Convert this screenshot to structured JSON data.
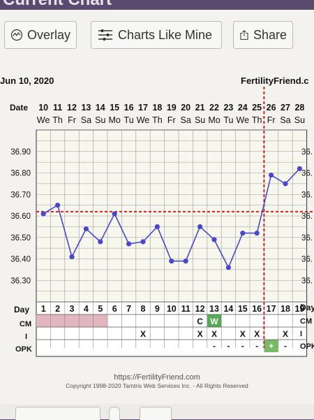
{
  "header": {
    "title": "Current Chart"
  },
  "toolbar": {
    "overlay_label": "Overlay",
    "charts_like_mine_label": "Charts Like Mine",
    "share_label": "Share"
  },
  "chart_info": {
    "start_date": "Jun 10, 2020",
    "site": "FertilityFriend.c"
  },
  "footer": {
    "url": "https://FertilityFriend.com",
    "copyright": "Copyright 1998-2020 Tamtris Web Services Inc. - All Rights Reserved"
  },
  "colors": {
    "line": "#4848c8",
    "coverline": "#cc2222",
    "cm_fill": "#e2b6be",
    "cm_w_fill": "#55aa55",
    "opk_pos_fill": "#77bb66"
  },
  "chart_data": {
    "type": "line",
    "date_row_label": "Date",
    "day_row_label": "Day",
    "right_day_label": "Day",
    "cm_label": "CM",
    "i_label": "I",
    "opk_label": "OPK",
    "right_cm_label": "CM",
    "right_i_label": "I",
    "right_opk_label": "OPK",
    "dates": [
      "10",
      "11",
      "12",
      "13",
      "14",
      "15",
      "16",
      "17",
      "18",
      "19",
      "20",
      "21",
      "22",
      "23",
      "24",
      "25",
      "26",
      "27",
      "28"
    ],
    "weekdays": [
      "We",
      "Th",
      "Fr",
      "Sa",
      "Su",
      "Mo",
      "Tu",
      "We",
      "Th",
      "Fr",
      "Sa",
      "Su",
      "Mo",
      "Tu",
      "We",
      "Th",
      "Fr",
      "Sa",
      "Su"
    ],
    "days": [
      "1",
      "2",
      "3",
      "4",
      "5",
      "6",
      "7",
      "8",
      "9",
      "10",
      "11",
      "12",
      "13",
      "14",
      "15",
      "16",
      "17",
      "18",
      "19"
    ],
    "temps": [
      36.61,
      36.65,
      36.41,
      36.54,
      36.48,
      36.61,
      36.47,
      36.48,
      36.55,
      36.39,
      36.39,
      36.55,
      36.49,
      36.36,
      36.52,
      36.52,
      36.79,
      36.75,
      36.82
    ],
    "y_ticks": [
      "36.90",
      "36.80",
      "36.70",
      "36.60",
      "36.50",
      "36.40",
      "36.30"
    ],
    "y_right_ticks": [
      "36.",
      "36.",
      "36.",
      "36.",
      "36.",
      "36.",
      "36."
    ],
    "ylim": [
      36.2,
      37.0
    ],
    "coverline": 36.62,
    "ovulation_day": 16,
    "cm": [
      "",
      "",
      "",
      "",
      "",
      "",
      "",
      "",
      "",
      "",
      "",
      "C",
      "W",
      "",
      "",
      "",
      "",
      "",
      ""
    ],
    "cm_shaded_days": [
      1,
      2,
      3,
      4,
      5
    ],
    "intercourse": [
      "",
      "",
      "",
      "",
      "",
      "",
      "",
      "X",
      "",
      "",
      "",
      "X",
      "X",
      "",
      "X",
      "X",
      "",
      "X",
      ""
    ],
    "opk": [
      "",
      "",
      "",
      "",
      "",
      "",
      "",
      "",
      "",
      "",
      "",
      "",
      "-",
      "-",
      "-",
      "-",
      "+",
      "-",
      ""
    ]
  }
}
